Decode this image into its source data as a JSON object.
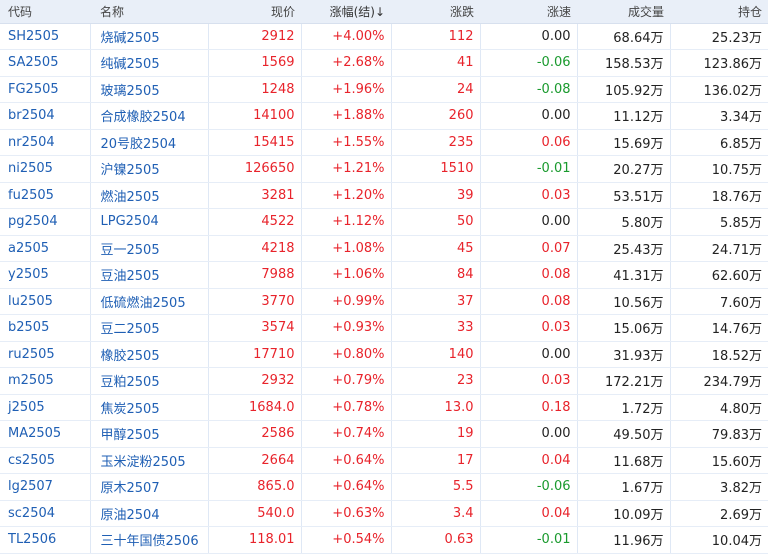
{
  "colors": {
    "up": "#e8232b",
    "down": "#1a9a2e",
    "flat": "#222222",
    "link": "#1f5fb4",
    "header_bg": "#e9eff8"
  },
  "headers": {
    "code": "代码",
    "name": "名称",
    "price": "现价",
    "change_pct": "涨幅(结)↓",
    "change": "涨跌",
    "speed": "涨速",
    "volume": "成交量",
    "open_interest": "持仓"
  },
  "rows": [
    {
      "code": "SH2505",
      "name": "烧碱2505",
      "price": "2912",
      "change_pct": "+4.00%",
      "change": "112",
      "speed": "0.00",
      "volume": "68.64万",
      "open_interest": "25.23万",
      "speed_dir": "flat"
    },
    {
      "code": "SA2505",
      "name": "纯碱2505",
      "price": "1569",
      "change_pct": "+2.68%",
      "change": "41",
      "speed": "-0.06",
      "volume": "158.53万",
      "open_interest": "123.86万",
      "speed_dir": "down"
    },
    {
      "code": "FG2505",
      "name": "玻璃2505",
      "price": "1248",
      "change_pct": "+1.96%",
      "change": "24",
      "speed": "-0.08",
      "volume": "105.92万",
      "open_interest": "136.02万",
      "speed_dir": "down"
    },
    {
      "code": "br2504",
      "name": "合成橡胶2504",
      "price": "14100",
      "change_pct": "+1.88%",
      "change": "260",
      "speed": "0.00",
      "volume": "11.12万",
      "open_interest": "3.34万",
      "speed_dir": "flat"
    },
    {
      "code": "nr2504",
      "name": "20号胶2504",
      "price": "15415",
      "change_pct": "+1.55%",
      "change": "235",
      "speed": "0.06",
      "volume": "15.69万",
      "open_interest": "6.85万",
      "speed_dir": "up"
    },
    {
      "code": "ni2505",
      "name": "沪镍2505",
      "price": "126650",
      "change_pct": "+1.21%",
      "change": "1510",
      "speed": "-0.01",
      "volume": "20.27万",
      "open_interest": "10.75万",
      "speed_dir": "down"
    },
    {
      "code": "fu2505",
      "name": "燃油2505",
      "price": "3281",
      "change_pct": "+1.20%",
      "change": "39",
      "speed": "0.03",
      "volume": "53.51万",
      "open_interest": "18.76万",
      "speed_dir": "up"
    },
    {
      "code": "pg2504",
      "name": "LPG2504",
      "price": "4522",
      "change_pct": "+1.12%",
      "change": "50",
      "speed": "0.00",
      "volume": "5.80万",
      "open_interest": "5.85万",
      "speed_dir": "flat"
    },
    {
      "code": "a2505",
      "name": "豆一2505",
      "price": "4218",
      "change_pct": "+1.08%",
      "change": "45",
      "speed": "0.07",
      "volume": "25.43万",
      "open_interest": "24.71万",
      "speed_dir": "up"
    },
    {
      "code": "y2505",
      "name": "豆油2505",
      "price": "7988",
      "change_pct": "+1.06%",
      "change": "84",
      "speed": "0.08",
      "volume": "41.31万",
      "open_interest": "62.60万",
      "speed_dir": "up"
    },
    {
      "code": "lu2505",
      "name": "低硫燃油2505",
      "price": "3770",
      "change_pct": "+0.99%",
      "change": "37",
      "speed": "0.08",
      "volume": "10.56万",
      "open_interest": "7.60万",
      "speed_dir": "up"
    },
    {
      "code": "b2505",
      "name": "豆二2505",
      "price": "3574",
      "change_pct": "+0.93%",
      "change": "33",
      "speed": "0.03",
      "volume": "15.06万",
      "open_interest": "14.76万",
      "speed_dir": "up"
    },
    {
      "code": "ru2505",
      "name": "橡胶2505",
      "price": "17710",
      "change_pct": "+0.80%",
      "change": "140",
      "speed": "0.00",
      "volume": "31.93万",
      "open_interest": "18.52万",
      "speed_dir": "flat"
    },
    {
      "code": "m2505",
      "name": "豆粕2505",
      "price": "2932",
      "change_pct": "+0.79%",
      "change": "23",
      "speed": "0.03",
      "volume": "172.21万",
      "open_interest": "234.79万",
      "speed_dir": "up"
    },
    {
      "code": "j2505",
      "name": "焦炭2505",
      "price": "1684.0",
      "change_pct": "+0.78%",
      "change": "13.0",
      "speed": "0.18",
      "volume": "1.72万",
      "open_interest": "4.80万",
      "speed_dir": "up"
    },
    {
      "code": "MA2505",
      "name": "甲醇2505",
      "price": "2586",
      "change_pct": "+0.74%",
      "change": "19",
      "speed": "0.00",
      "volume": "49.50万",
      "open_interest": "79.83万",
      "speed_dir": "flat"
    },
    {
      "code": "cs2505",
      "name": "玉米淀粉2505",
      "price": "2664",
      "change_pct": "+0.64%",
      "change": "17",
      "speed": "0.04",
      "volume": "11.68万",
      "open_interest": "15.60万",
      "speed_dir": "up"
    },
    {
      "code": "lg2507",
      "name": "原木2507",
      "price": "865.0",
      "change_pct": "+0.64%",
      "change": "5.5",
      "speed": "-0.06",
      "volume": "1.67万",
      "open_interest": "3.82万",
      "speed_dir": "down"
    },
    {
      "code": "sc2504",
      "name": "原油2504",
      "price": "540.0",
      "change_pct": "+0.63%",
      "change": "3.4",
      "speed": "0.04",
      "volume": "10.09万",
      "open_interest": "2.69万",
      "speed_dir": "up"
    },
    {
      "code": "TL2506",
      "name": "三十年国债2506",
      "price": "118.01",
      "change_pct": "+0.54%",
      "change": "0.63",
      "speed": "-0.01",
      "volume": "11.96万",
      "open_interest": "10.04万",
      "speed_dir": "down"
    }
  ]
}
